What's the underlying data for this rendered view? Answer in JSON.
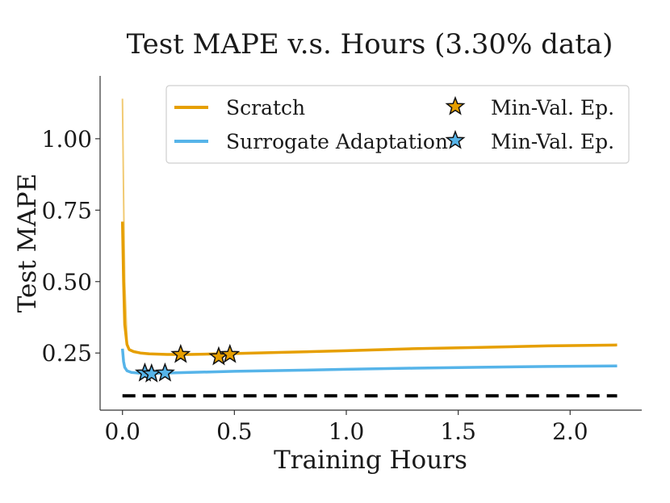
{
  "chart_data": {
    "type": "line",
    "title": "Test MAPE v.s. Hours (3.30% data)",
    "xlabel": "Training Hours",
    "ylabel": "Test MAPE",
    "xlim": [
      -0.1,
      2.32
    ],
    "ylim": [
      0.05,
      1.22
    ],
    "x_ticks": [
      0.0,
      0.5,
      1.0,
      1.5,
      2.0
    ],
    "x_tick_labels": [
      "0.0",
      "0.5",
      "1.0",
      "1.5",
      "2.0"
    ],
    "y_ticks": [
      0.25,
      0.5,
      0.75,
      1.0
    ],
    "y_tick_labels": [
      "0.25",
      "0.50",
      "0.75",
      "1.00"
    ],
    "grid": false,
    "legend_position": "top-right",
    "series": [
      {
        "name": "Scratch",
        "color": "#E69F00",
        "x": [
          0.0,
          0.005,
          0.01,
          0.02,
          0.03,
          0.05,
          0.08,
          0.12,
          0.2,
          0.3,
          0.5,
          0.7,
          1.0,
          1.3,
          1.6,
          1.9,
          2.21
        ],
        "values": [
          0.71,
          0.5,
          0.35,
          0.28,
          0.262,
          0.255,
          0.25,
          0.247,
          0.245,
          0.245,
          0.248,
          0.252,
          0.258,
          0.265,
          0.27,
          0.275,
          0.278
        ],
        "noisy_envelope": {
          "x": [
            0.0,
            0.005,
            0.01,
            0.02
          ],
          "values": [
            1.14,
            0.8,
            0.5,
            0.3
          ]
        },
        "min_val_epochs": {
          "label": "Min-Val. Ep.",
          "x": [
            0.26,
            0.43,
            0.48
          ],
          "y": [
            0.245,
            0.237,
            0.245
          ]
        }
      },
      {
        "name": "Surrogate Adaptation",
        "color": "#56B4E9",
        "x": [
          0.0,
          0.005,
          0.01,
          0.02,
          0.04,
          0.07,
          0.1,
          0.15,
          0.2,
          0.3,
          0.5,
          0.8,
          1.0,
          1.3,
          1.6,
          1.9,
          2.21
        ],
        "values": [
          0.265,
          0.22,
          0.2,
          0.188,
          0.182,
          0.18,
          0.179,
          0.179,
          0.18,
          0.182,
          0.186,
          0.19,
          0.193,
          0.197,
          0.2,
          0.203,
          0.205
        ],
        "min_val_epochs": {
          "label": "Min-Val. Ep.",
          "x": [
            0.1,
            0.13,
            0.19
          ],
          "y": [
            0.18,
            0.177,
            0.18
          ]
        }
      }
    ],
    "reference_line": {
      "y": 0.1,
      "style": "dashed",
      "color": "#000000",
      "x_range": [
        0.0,
        2.21
      ]
    },
    "legend": {
      "entries": [
        {
          "label": "Scratch",
          "marker": "line",
          "color": "#E69F00"
        },
        {
          "label": "Min-Val. Ep.",
          "marker": "star",
          "color": "#E69F00"
        },
        {
          "label": "Surrogate Adaptation",
          "marker": "line",
          "color": "#56B4E9"
        },
        {
          "label": "Min-Val. Ep.",
          "marker": "star",
          "color": "#56B4E9"
        }
      ]
    }
  }
}
